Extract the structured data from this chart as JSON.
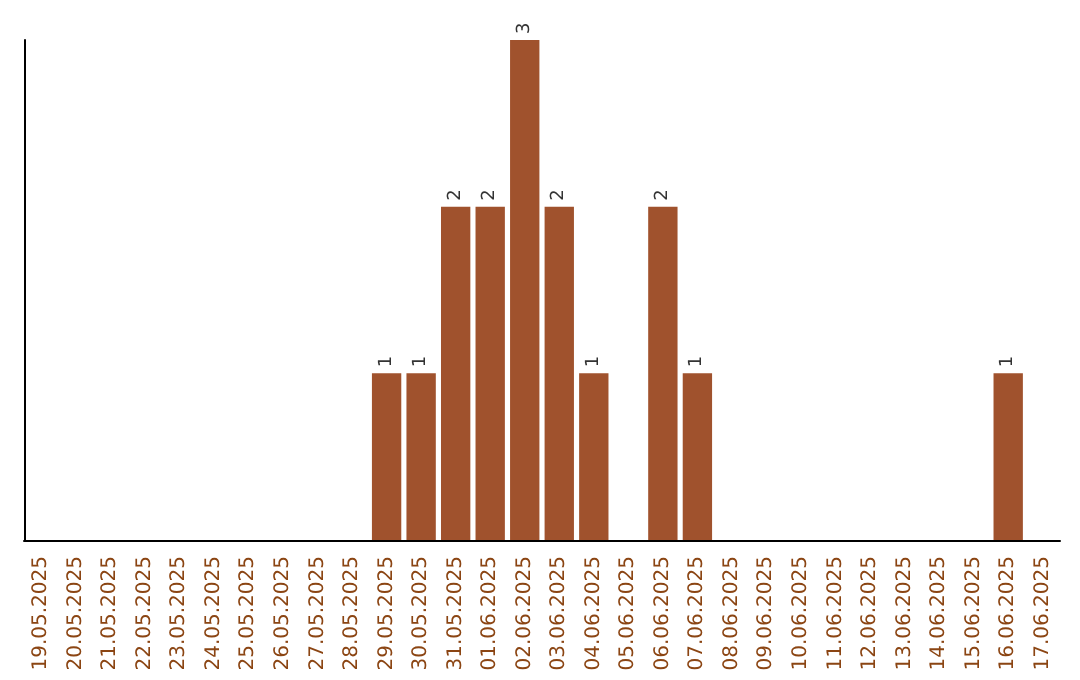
{
  "chart_data": {
    "type": "bar",
    "categories": [
      "19.05.2025",
      "20.05.2025",
      "21.05.2025",
      "22.05.2025",
      "23.05.2025",
      "24.05.2025",
      "25.05.2025",
      "26.05.2025",
      "27.05.2025",
      "28.05.2025",
      "29.05.2025",
      "30.05.2025",
      "31.05.2025",
      "01.06.2025",
      "02.06.2025",
      "03.06.2025",
      "04.06.2025",
      "05.06.2025",
      "06.06.2025",
      "07.06.2025",
      "08.06.2025",
      "09.06.2025",
      "10.06.2025",
      "11.06.2025",
      "12.06.2025",
      "13.06.2025",
      "14.06.2025",
      "15.06.2025",
      "16.06.2025",
      "17.06.2025"
    ],
    "values": [
      0,
      0,
      0,
      0,
      0,
      0,
      0,
      0,
      0,
      0,
      1,
      1,
      2,
      2,
      3,
      2,
      1,
      0,
      2,
      1,
      0,
      0,
      0,
      0,
      0,
      0,
      0,
      0,
      1,
      0
    ],
    "value_labels": [
      null,
      null,
      null,
      null,
      null,
      null,
      null,
      null,
      null,
      null,
      "1",
      "1",
      "2",
      "2",
      "3",
      "2",
      "1",
      null,
      "2",
      "1",
      null,
      null,
      null,
      null,
      null,
      null,
      null,
      null,
      "1",
      null
    ],
    "color": "#a0522d",
    "grid": false,
    "tick_labels": "x"
  }
}
